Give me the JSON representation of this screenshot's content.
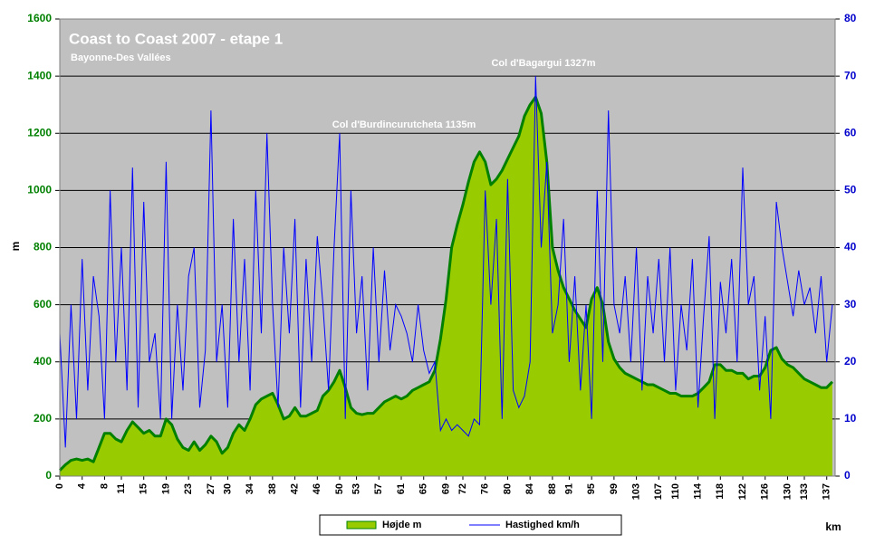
{
  "chart_data": {
    "type": "line",
    "title": "Coast to Coast 2007 - etape 1",
    "subtitle": "Bayonne-Des Vallées",
    "y_label": "m",
    "x_label": "km",
    "annotations": [
      "Col d'Burdincurutcheta 1135m",
      "Col d'Bagargui 1327m"
    ],
    "x": [
      0,
      1,
      2,
      3,
      4,
      5,
      6,
      7,
      8,
      9,
      10,
      11,
      12,
      13,
      14,
      15,
      16,
      17,
      18,
      19,
      20,
      21,
      22,
      23,
      24,
      25,
      26,
      27,
      28,
      29,
      30,
      31,
      32,
      33,
      34,
      35,
      36,
      37,
      38,
      39,
      40,
      41,
      42,
      43,
      44,
      45,
      46,
      47,
      48,
      49,
      50,
      51,
      52,
      53,
      54,
      55,
      56,
      57,
      58,
      59,
      60,
      61,
      62,
      63,
      64,
      65,
      66,
      67,
      68,
      69,
      70,
      71,
      72,
      73,
      74,
      75,
      76,
      77,
      78,
      79,
      80,
      81,
      82,
      83,
      84,
      85,
      86,
      87,
      88,
      89,
      90,
      91,
      92,
      93,
      94,
      95,
      96,
      97,
      98,
      99,
      100,
      101,
      102,
      103,
      104,
      105,
      106,
      107,
      108,
      109,
      110,
      111,
      112,
      113,
      114,
      115,
      116,
      117,
      118,
      119,
      120,
      121,
      122,
      123,
      124,
      125,
      126,
      127,
      128,
      129,
      130,
      131,
      132,
      133,
      134,
      135,
      136,
      137,
      138
    ],
    "series": [
      {
        "name": "Højde m",
        "color": "#008000",
        "fill": "#99cc00",
        "values": [
          20,
          40,
          55,
          60,
          55,
          60,
          50,
          100,
          150,
          150,
          130,
          120,
          160,
          190,
          170,
          150,
          160,
          140,
          140,
          200,
          180,
          130,
          100,
          90,
          120,
          90,
          110,
          140,
          120,
          80,
          100,
          150,
          180,
          160,
          200,
          250,
          270,
          280,
          290,
          250,
          200,
          210,
          240,
          210,
          210,
          220,
          230,
          280,
          300,
          330,
          370,
          310,
          240,
          220,
          215,
          220,
          220,
          240,
          260,
          270,
          280,
          270,
          280,
          300,
          310,
          320,
          330,
          370,
          480,
          620,
          800,
          880,
          950,
          1030,
          1100,
          1135,
          1100,
          1020,
          1040,
          1070,
          1110,
          1150,
          1190,
          1260,
          1300,
          1327,
          1270,
          1100,
          800,
          720,
          660,
          620,
          580,
          550,
          520,
          620,
          660,
          600,
          470,
          410,
          380,
          360,
          350,
          340,
          330,
          320,
          320,
          310,
          300,
          290,
          290,
          280,
          280,
          280,
          290,
          310,
          330,
          390,
          390,
          370,
          370,
          360,
          360,
          340,
          350,
          350,
          380,
          440,
          450,
          410,
          390,
          380,
          360,
          340,
          330,
          320,
          310,
          310,
          330
        ]
      },
      {
        "name": "Hastighed km/h",
        "color": "#0000ff",
        "axis": "y2",
        "values": [
          25,
          5,
          30,
          10,
          38,
          15,
          35,
          28,
          10,
          50,
          20,
          40,
          15,
          54,
          12,
          48,
          20,
          25,
          10,
          55,
          10,
          30,
          15,
          35,
          40,
          12,
          22,
          64,
          20,
          30,
          12,
          45,
          20,
          38,
          15,
          50,
          25,
          60,
          30,
          12,
          40,
          25,
          45,
          12,
          38,
          20,
          42,
          30,
          15,
          40,
          60,
          10,
          50,
          25,
          35,
          15,
          40,
          20,
          36,
          22,
          30,
          28,
          25,
          20,
          30,
          22,
          18,
          20,
          8,
          10,
          8,
          9,
          8,
          7,
          10,
          9,
          50,
          30,
          45,
          10,
          52,
          15,
          12,
          14,
          20,
          70,
          40,
          55,
          25,
          30,
          45,
          20,
          35,
          15,
          30,
          10,
          50,
          20,
          64,
          30,
          25,
          35,
          20,
          40,
          15,
          35,
          25,
          38,
          20,
          40,
          15,
          30,
          22,
          38,
          12,
          28,
          42,
          10,
          34,
          25,
          38,
          20,
          54,
          30,
          35,
          15,
          28,
          10,
          48,
          40,
          34,
          28,
          36,
          30,
          33,
          25,
          35,
          20,
          30
        ]
      }
    ],
    "xlim": [
      0,
      138.5
    ],
    "xticks": [
      0,
      4,
      8,
      11,
      15,
      19,
      23,
      27,
      30,
      34,
      38,
      42,
      46,
      50,
      53,
      57,
      61,
      65,
      69,
      72,
      76,
      80,
      84,
      88,
      91,
      95,
      99,
      103,
      107,
      110,
      114,
      118,
      122,
      126,
      130,
      133,
      137
    ],
    "ylim": [
      0,
      1600
    ],
    "yticks": [
      0,
      200,
      400,
      600,
      800,
      1000,
      1200,
      1400,
      1600
    ],
    "y2lim": [
      0,
      80
    ],
    "y2ticks": [
      0,
      10,
      20,
      30,
      40,
      50,
      60,
      70,
      80
    ],
    "grid": true,
    "background": "#c0c0c0"
  }
}
